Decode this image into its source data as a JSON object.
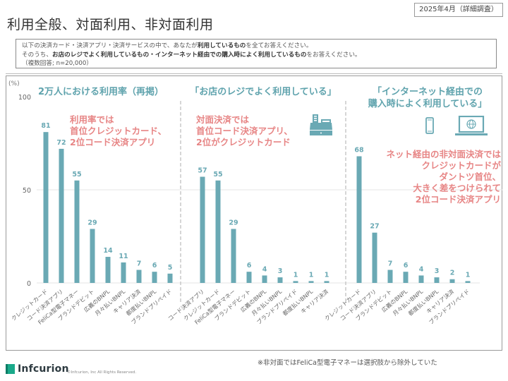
{
  "header": {
    "date_badge": "2025年4月（詳細調査）",
    "title": "利用全般、対面利用、非対面利用"
  },
  "question": {
    "line1_pre": "以下の決済カード・決済アプリ・決済サービスの中で、あなたが",
    "line1_bold": "利用しているもの",
    "line1_post": "を全てお答えください。",
    "line2_pre": "そのうち、",
    "line2_bold": "お店のレジでよく利用しているもの・インターネット経由での購入時によく利用しているもの",
    "line2_post": "をお答えください。",
    "line3": "（複数回答; n=20,000）"
  },
  "panels": [
    {
      "title": "2万人における利用率（再掲）",
      "annotation": [
        "利用率では",
        "首位クレジットカード、",
        "2位コード決済アプリ"
      ]
    },
    {
      "title": "「お店のレジでよく利用している」",
      "annotation": [
        "対面決済では",
        "首位コード決済アプリ、",
        "2位がクレジットカード"
      ],
      "icon": "cash-register-icon"
    },
    {
      "title_lines": [
        "「インターネット経由での",
        "購入時によく利用している」"
      ],
      "annotation": [
        "ネット経由の非対面決済では",
        "クレジットカードが",
        "ダントツ首位、",
        "大きく差をつけられて",
        "2位コード決済アプリ"
      ],
      "icons": [
        "smartphone-icon",
        "laptop-globe-icon"
      ]
    }
  ],
  "footer": {
    "note": "※非対面ではFeliCa型電子マネーは選択肢から除外していた",
    "logo": "Infcurion",
    "copyright": "©Infcurion, Inc   All Rights Reserved."
  },
  "colors": {
    "bar": "#6aa9b4",
    "title": "#5fa3ad",
    "annotation": "#e78585"
  },
  "chart_data": [
    {
      "type": "bar",
      "title": "2万人における利用率（再掲）",
      "ylabel": "(%)",
      "ylim": [
        0,
        100
      ],
      "yticks": [
        0,
        50,
        100
      ],
      "grid": true,
      "categories": [
        "クレジットカード",
        "コード決済アプリ",
        "FeliCa型電子マネー",
        "ブランドデビット",
        "広義のBNPL",
        "月々払いBNPL",
        "キャリア決済",
        "都度払いBNPL",
        "ブランドプリペイド"
      ],
      "values": [
        81,
        72,
        55,
        29,
        14,
        11,
        7,
        6,
        5
      ]
    },
    {
      "type": "bar",
      "title": "「お店のレジでよく利用している」",
      "ylim": [
        0,
        100
      ],
      "categories": [
        "コード決済アプリ",
        "クレジットカード",
        "FeliCa型電子マネー",
        "ブランドデビット",
        "広義のBNPL",
        "月々払いBNPL",
        "ブランドプリペイド",
        "都度払いBNPL",
        "キャリア決済"
      ],
      "values": [
        57,
        55,
        29,
        6,
        4,
        3,
        1,
        1,
        1
      ]
    },
    {
      "type": "bar",
      "title": "「インターネット経由での購入時によく利用している」",
      "ylim": [
        0,
        100
      ],
      "categories": [
        "クレジットカード",
        "コード決済アプリ",
        "ブランドデビット",
        "広義のBNPL",
        "月々払いBNPL",
        "都度払いBNPL",
        "キャリア決済",
        "ブランドプリペイド"
      ],
      "values": [
        68,
        27,
        7,
        6,
        4,
        3,
        2,
        1
      ]
    }
  ]
}
